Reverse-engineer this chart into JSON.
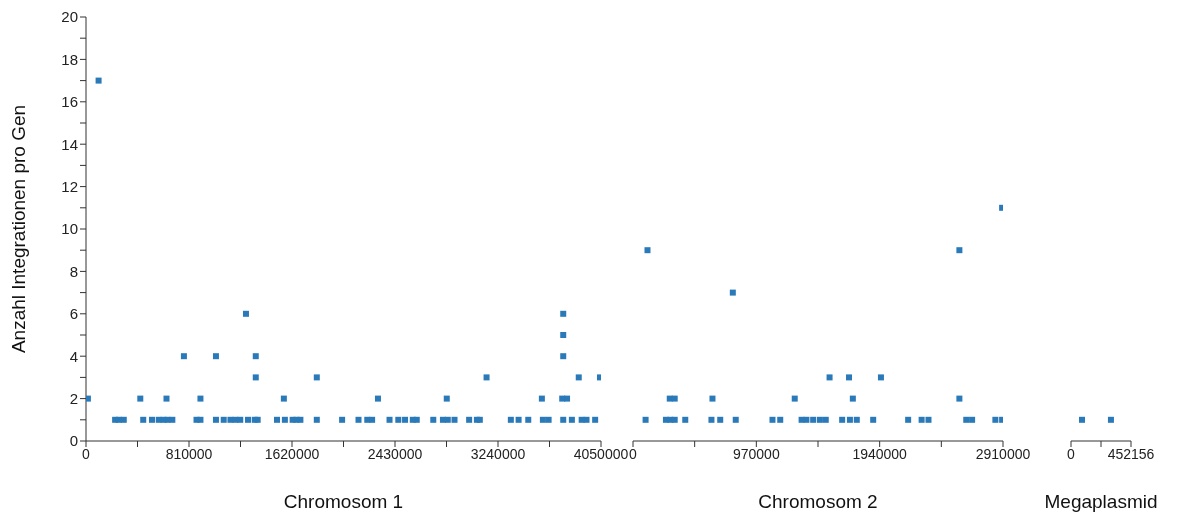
{
  "chart_data": [
    {
      "type": "scatter",
      "xlabel": "Chromosom 1",
      "ylabel": "Anzahl Integrationen pro Gen",
      "marker": "square",
      "grid": false,
      "legend": false,
      "xlim": [
        0,
        4050000
      ],
      "ylim": [
        0,
        20
      ],
      "xticks": [
        0,
        {
          "value": 405000,
          "label": null
        },
        810000,
        {
          "value": 1215000,
          "label": null
        },
        1620000,
        {
          "value": 2025000,
          "label": null
        },
        2430000,
        {
          "value": 2835000,
          "label": null
        },
        3240000,
        {
          "value": 3645000,
          "label": null
        },
        4050000
      ],
      "yticks": [
        0,
        {
          "value": 1,
          "label": null
        },
        2,
        {
          "value": 3,
          "label": null
        },
        4,
        {
          "value": 5,
          "label": null
        },
        6,
        {
          "value": 7,
          "label": null
        },
        8,
        {
          "value": 9,
          "label": null
        },
        10,
        {
          "value": 11,
          "label": null
        },
        12,
        {
          "value": 13,
          "label": null
        },
        14,
        {
          "value": 15,
          "label": null
        },
        16,
        {
          "value": 17,
          "label": null
        },
        18,
        {
          "value": 19,
          "label": null
        },
        20
      ],
      "series": [
        {
          "color": "#2a7ab9",
          "x": [
            15000,
            99000,
            229000,
            259000,
            297000,
            427000,
            450000,
            519000,
            572000,
            610000,
            633000,
            641000,
            679000,
            770000,
            869000,
            900000,
            900000,
            1022000,
            1022000,
            1083000,
            1136000,
            1175000,
            1213000,
            1258000,
            1274000,
            1327000,
            1350000,
            1335000,
            1335000,
            1502000,
            1564000,
            1556000,
            1625000,
            1655000,
            1686000,
            1815000,
            1815000,
            2014000,
            2143000,
            2212000,
            2250000,
            2296000,
            2387000,
            2456000,
            2509000,
            2570000,
            2601000,
            2731000,
            2807000,
            2845000,
            2837000,
            2898000,
            3013000,
            3074000,
            3097000,
            3150000,
            3341000,
            3402000,
            3478000,
            3585000,
            3593000,
            3638000,
            3753000,
            3753000,
            3753000,
            3745000,
            3783000,
            3753000,
            3821000,
            3898000,
            3936000,
            4004000,
            3875000,
            4042000
          ],
          "values": [
            2,
            17,
            1,
            1,
            1,
            2,
            1,
            1,
            1,
            1,
            2,
            1,
            1,
            4,
            1,
            1,
            2,
            4,
            1,
            1,
            1,
            1,
            1,
            6,
            1,
            1,
            1,
            4,
            3,
            1,
            1,
            2,
            1,
            1,
            1,
            3,
            1,
            1,
            1,
            1,
            1,
            2,
            1,
            1,
            1,
            1,
            1,
            1,
            1,
            1,
            2,
            1,
            1,
            1,
            1,
            3,
            1,
            1,
            1,
            2,
            1,
            1,
            6,
            5,
            4,
            2,
            2,
            1,
            1,
            1,
            1,
            1,
            3,
            3
          ]
        }
      ]
    },
    {
      "type": "scatter",
      "xlabel": "Chromosom 2",
      "marker": "square",
      "grid": false,
      "legend": false,
      "tick_labels": "x",
      "xlim": [
        0,
        2910000
      ],
      "ylim": [
        0,
        20
      ],
      "xticks": [
        0,
        {
          "value": 485000,
          "label": null
        },
        970000,
        {
          "value": 1455000,
          "label": null
        },
        1940000,
        {
          "value": 2425000,
          "label": null
        },
        2910000
      ],
      "series": [
        {
          "color": "#2a7ab9",
          "x": [
            99000,
            114000,
            259000,
            289000,
            294000,
            328000,
            328000,
            411000,
            617000,
            625000,
            686000,
            785000,
            808000,
            1097000,
            1158000,
            1272000,
            1326000,
            1364000,
            1417000,
            1470000,
            1516000,
            1546000,
            1645000,
            1699000,
            1706000,
            1729000,
            1760000,
            1889000,
            1950000,
            2164000,
            2270000,
            2324000,
            2567000,
            2567000,
            2621000,
            2667000,
            2850000,
            2903000,
            2903000
          ],
          "values": [
            1,
            9,
            1,
            2,
            1,
            2,
            1,
            1,
            1,
            2,
            1,
            7,
            1,
            1,
            1,
            2,
            1,
            1,
            1,
            1,
            1,
            3,
            1,
            3,
            1,
            2,
            1,
            1,
            3,
            1,
            1,
            1,
            9,
            2,
            1,
            1,
            1,
            1,
            11
          ]
        }
      ]
    },
    {
      "type": "scatter",
      "xlabel": "Megaplasmid",
      "marker": "square",
      "grid": false,
      "legend": false,
      "tick_labels": "x",
      "xlim": [
        0,
        452156
      ],
      "ylim": [
        0,
        20
      ],
      "xticks": [
        0,
        {
          "value": 226078,
          "label": null
        },
        452156
      ],
      "series": [
        {
          "color": "#2a7ab9",
          "x": [
            83000,
            301000
          ],
          "values": [
            1,
            1
          ]
        }
      ]
    }
  ]
}
